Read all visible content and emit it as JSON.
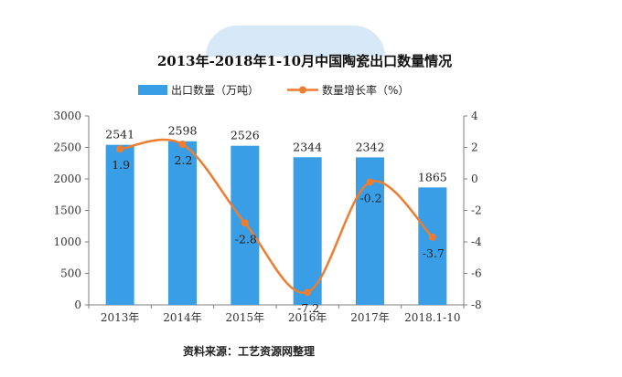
{
  "chart_data": {
    "type": "bar+line",
    "title": "2013年-2018年1-10月中国陶瓷出口数量情况",
    "categories": [
      "2013年",
      "2014年",
      "2015年",
      "2016年",
      "2017年",
      "2018.1-10"
    ],
    "series": [
      {
        "name": "出口数量（万吨）",
        "type": "bar",
        "axis": "left",
        "values": [
          2541,
          2598,
          2526,
          2344,
          2342,
          1865
        ],
        "labels": [
          "2541",
          "2598",
          "2526",
          "2344",
          "2342",
          "1865"
        ],
        "color": "#3a9ee6"
      },
      {
        "name": "数量增长率（%）",
        "type": "line",
        "axis": "right",
        "values": [
          1.9,
          2.2,
          -2.8,
          -7.2,
          -0.2,
          -3.7
        ],
        "labels": [
          "1.9",
          "2.2",
          "-2.8",
          "-7.2",
          "-0.2",
          "-3.7"
        ],
        "color": "#ed7d31"
      }
    ],
    "y_left": {
      "min": 0,
      "max": 3000,
      "ticks": [
        "0",
        "500",
        "1000",
        "1500",
        "2000",
        "2500",
        "3000"
      ]
    },
    "y_right": {
      "min": -8,
      "max": 4,
      "ticks": [
        "-8",
        "-6",
        "-4",
        "-2",
        "0",
        "2",
        "4"
      ]
    },
    "legend_position": "top",
    "source": "资料来源：工艺资源网整理"
  },
  "colors": {
    "bar": "#3a9ee6",
    "line": "#ed7d31",
    "axis": "#7f7f7f"
  }
}
